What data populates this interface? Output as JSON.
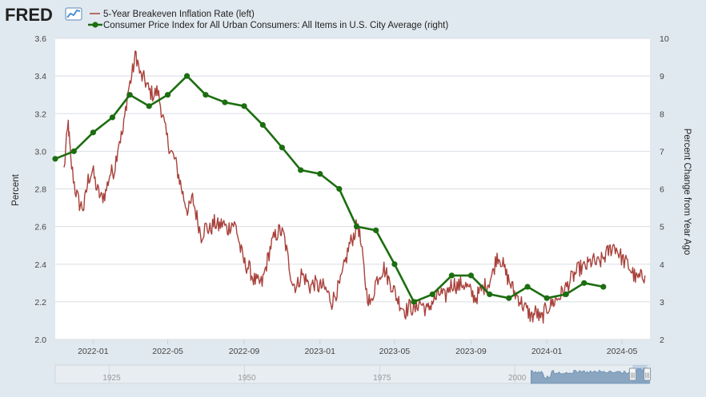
{
  "brand": {
    "name": "FRED"
  },
  "colors": {
    "background": "#e1e9f0",
    "plot_background": "#ffffff",
    "breakeven": "#a9413b",
    "cpi": "#1c6e10",
    "grid": "#d8dde3",
    "navigator_fill": "#8aa6c0"
  },
  "chart_data": {
    "type": "line",
    "legend_position": "top-left",
    "grid": true,
    "series": [
      {
        "name": "5-Year Breakeven Inflation Rate (left)",
        "axis": "left",
        "kind": "daily",
        "anchors": [
          [
            "2021-11-15",
            2.9
          ],
          [
            "2021-11-22",
            3.15
          ],
          [
            "2021-11-26",
            2.95
          ],
          [
            "2021-12-03",
            2.8
          ],
          [
            "2021-12-10",
            2.72
          ],
          [
            "2021-12-17",
            2.7
          ],
          [
            "2021-12-24",
            2.85
          ],
          [
            "2021-12-31",
            2.9
          ],
          [
            "2022-01-07",
            2.8
          ],
          [
            "2022-01-14",
            2.75
          ],
          [
            "2022-01-21",
            2.78
          ],
          [
            "2022-01-28",
            2.88
          ],
          [
            "2022-02-04",
            2.9
          ],
          [
            "2022-02-11",
            3.05
          ],
          [
            "2022-02-18",
            3.1
          ],
          [
            "2022-02-25",
            3.3
          ],
          [
            "2022-03-04",
            3.4
          ],
          [
            "2022-03-11",
            3.52
          ],
          [
            "2022-03-18",
            3.4
          ],
          [
            "2022-03-25",
            3.38
          ],
          [
            "2022-04-01",
            3.32
          ],
          [
            "2022-04-08",
            3.3
          ],
          [
            "2022-04-15",
            3.32
          ],
          [
            "2022-04-22",
            3.2
          ],
          [
            "2022-04-29",
            3.08
          ],
          [
            "2022-05-06",
            3.0
          ],
          [
            "2022-05-13",
            2.95
          ],
          [
            "2022-05-20",
            2.85
          ],
          [
            "2022-05-27",
            2.75
          ],
          [
            "2022-06-03",
            2.68
          ],
          [
            "2022-06-10",
            2.75
          ],
          [
            "2022-06-17",
            2.65
          ],
          [
            "2022-06-24",
            2.55
          ],
          [
            "2022-07-01",
            2.6
          ],
          [
            "2022-07-08",
            2.58
          ],
          [
            "2022-07-15",
            2.62
          ],
          [
            "2022-07-22",
            2.6
          ],
          [
            "2022-07-29",
            2.62
          ],
          [
            "2022-08-05",
            2.58
          ],
          [
            "2022-08-12",
            2.62
          ],
          [
            "2022-08-19",
            2.6
          ],
          [
            "2022-08-26",
            2.48
          ],
          [
            "2022-09-02",
            2.4
          ],
          [
            "2022-09-09",
            2.38
          ],
          [
            "2022-09-16",
            2.32
          ],
          [
            "2022-09-23",
            2.3
          ],
          [
            "2022-09-30",
            2.3
          ],
          [
            "2022-10-07",
            2.4
          ],
          [
            "2022-10-14",
            2.5
          ],
          [
            "2022-10-21",
            2.55
          ],
          [
            "2022-10-28",
            2.58
          ],
          [
            "2022-11-04",
            2.55
          ],
          [
            "2022-11-11",
            2.42
          ],
          [
            "2022-11-18",
            2.3
          ],
          [
            "2022-11-25",
            2.28
          ],
          [
            "2022-12-02",
            2.35
          ],
          [
            "2022-12-09",
            2.32
          ],
          [
            "2022-12-16",
            2.28
          ],
          [
            "2022-12-23",
            2.3
          ],
          [
            "2022-12-30",
            2.28
          ],
          [
            "2023-01-06",
            2.28
          ],
          [
            "2023-01-13",
            2.25
          ],
          [
            "2023-01-20",
            2.2
          ],
          [
            "2023-01-27",
            2.25
          ],
          [
            "2023-02-03",
            2.3
          ],
          [
            "2023-02-10",
            2.4
          ],
          [
            "2023-02-17",
            2.5
          ],
          [
            "2023-02-24",
            2.55
          ],
          [
            "2023-03-03",
            2.62
          ],
          [
            "2023-03-10",
            2.45
          ],
          [
            "2023-03-17",
            2.25
          ],
          [
            "2023-03-24",
            2.18
          ],
          [
            "2023-03-31",
            2.3
          ],
          [
            "2023-04-07",
            2.35
          ],
          [
            "2023-04-14",
            2.38
          ],
          [
            "2023-04-21",
            2.32
          ],
          [
            "2023-04-28",
            2.28
          ],
          [
            "2023-05-05",
            2.22
          ],
          [
            "2023-05-12",
            2.18
          ],
          [
            "2023-05-19",
            2.15
          ],
          [
            "2023-05-26",
            2.18
          ],
          [
            "2023-06-02",
            2.15
          ],
          [
            "2023-06-09",
            2.2
          ],
          [
            "2023-06-16",
            2.18
          ],
          [
            "2023-06-23",
            2.15
          ],
          [
            "2023-06-30",
            2.2
          ],
          [
            "2023-07-07",
            2.22
          ],
          [
            "2023-07-14",
            2.25
          ],
          [
            "2023-07-21",
            2.22
          ],
          [
            "2023-07-28",
            2.28
          ],
          [
            "2023-08-04",
            2.3
          ],
          [
            "2023-08-11",
            2.28
          ],
          [
            "2023-08-18",
            2.3
          ],
          [
            "2023-08-25",
            2.28
          ],
          [
            "2023-09-01",
            2.25
          ],
          [
            "2023-09-08",
            2.22
          ],
          [
            "2023-09-15",
            2.25
          ],
          [
            "2023-09-22",
            2.28
          ],
          [
            "2023-09-29",
            2.3
          ],
          [
            "2023-10-06",
            2.35
          ],
          [
            "2023-10-13",
            2.45
          ],
          [
            "2023-10-20",
            2.42
          ],
          [
            "2023-10-27",
            2.35
          ],
          [
            "2023-11-03",
            2.3
          ],
          [
            "2023-11-10",
            2.25
          ],
          [
            "2023-11-17",
            2.22
          ],
          [
            "2023-11-24",
            2.18
          ],
          [
            "2023-12-01",
            2.15
          ],
          [
            "2023-12-08",
            2.12
          ],
          [
            "2023-12-15",
            2.15
          ],
          [
            "2023-12-22",
            2.1
          ],
          [
            "2023-12-29",
            2.15
          ],
          [
            "2024-01-05",
            2.18
          ],
          [
            "2024-01-12",
            2.2
          ],
          [
            "2024-01-19",
            2.22
          ],
          [
            "2024-01-26",
            2.25
          ],
          [
            "2024-02-02",
            2.28
          ],
          [
            "2024-02-09",
            2.32
          ],
          [
            "2024-02-16",
            2.35
          ],
          [
            "2024-02-23",
            2.38
          ],
          [
            "2024-03-01",
            2.38
          ],
          [
            "2024-03-08",
            2.4
          ],
          [
            "2024-03-15",
            2.42
          ],
          [
            "2024-03-22",
            2.4
          ],
          [
            "2024-03-29",
            2.42
          ],
          [
            "2024-04-05",
            2.45
          ],
          [
            "2024-04-12",
            2.48
          ],
          [
            "2024-04-19",
            2.5
          ],
          [
            "2024-04-26",
            2.46
          ],
          [
            "2024-05-03",
            2.42
          ],
          [
            "2024-05-10",
            2.4
          ],
          [
            "2024-05-17",
            2.36
          ],
          [
            "2024-05-24",
            2.32
          ],
          [
            "2024-05-31",
            2.33
          ],
          [
            "2024-06-07",
            2.34
          ]
        ]
      },
      {
        "name": "Consumer Price Index for All Urban Consumers: All Items in U.S. City Average (right)",
        "axis": "right",
        "kind": "monthly",
        "marker": "circle",
        "points": [
          [
            "2021-11-01",
            6.8
          ],
          [
            "2021-12-01",
            7.0
          ],
          [
            "2022-01-01",
            7.5
          ],
          [
            "2022-02-01",
            7.9
          ],
          [
            "2022-03-01",
            8.5
          ],
          [
            "2022-04-01",
            8.2
          ],
          [
            "2022-05-01",
            8.5
          ],
          [
            "2022-06-01",
            9.0
          ],
          [
            "2022-07-01",
            8.5
          ],
          [
            "2022-08-01",
            8.3
          ],
          [
            "2022-09-01",
            8.2
          ],
          [
            "2022-10-01",
            7.7
          ],
          [
            "2022-11-01",
            7.1
          ],
          [
            "2022-12-01",
            6.5
          ],
          [
            "2023-01-01",
            6.4
          ],
          [
            "2023-02-01",
            6.0
          ],
          [
            "2023-03-01",
            5.0
          ],
          [
            "2023-04-01",
            4.9
          ],
          [
            "2023-05-01",
            4.0
          ],
          [
            "2023-06-01",
            3.0
          ],
          [
            "2023-07-01",
            3.2
          ],
          [
            "2023-08-01",
            3.7
          ],
          [
            "2023-09-01",
            3.7
          ],
          [
            "2023-10-01",
            3.2
          ],
          [
            "2023-11-01",
            3.1
          ],
          [
            "2023-12-01",
            3.4
          ],
          [
            "2024-01-01",
            3.1
          ],
          [
            "2024-02-01",
            3.2
          ],
          [
            "2024-03-01",
            3.5
          ],
          [
            "2024-04-01",
            3.4
          ]
        ]
      }
    ],
    "x_axis": {
      "range": [
        "2021-11-01",
        "2024-06-15"
      ],
      "tick_labels": [
        "2022-01",
        "2022-05",
        "2022-09",
        "2023-01",
        "2023-05",
        "2023-09",
        "2024-01",
        "2024-05"
      ]
    },
    "y_left": {
      "label": "Percent",
      "range": [
        2.0,
        3.6
      ],
      "tick_labels": [
        "2.0",
        "2.2",
        "2.4",
        "2.6",
        "2.8",
        "3.0",
        "3.2",
        "3.4",
        "3.6"
      ]
    },
    "y_right": {
      "label": "Percent Change from Year Ago",
      "range": [
        2,
        10
      ],
      "tick_labels": [
        "2",
        "3",
        "4",
        "5",
        "6",
        "7",
        "8",
        "9",
        "10"
      ]
    },
    "navigator": {
      "range": [
        1915,
        2025
      ],
      "selected": [
        2021.8,
        2024.5
      ],
      "tick_labels": [
        "1925",
        "1950",
        "1975",
        "2000"
      ],
      "handle_label": "|||"
    }
  }
}
